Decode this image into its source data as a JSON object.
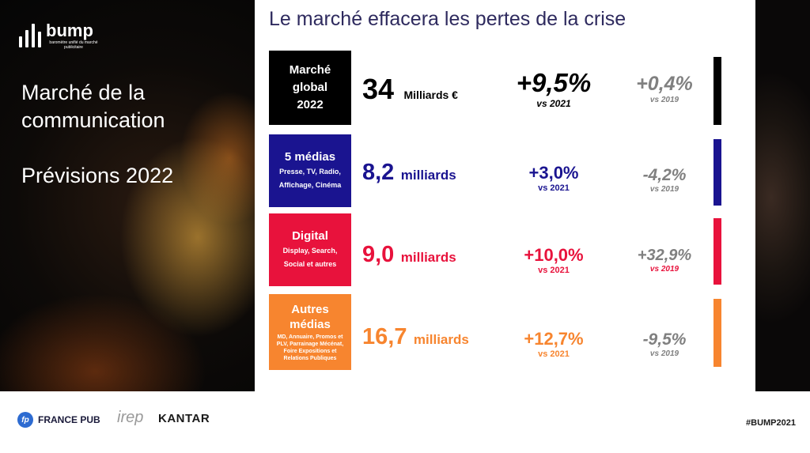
{
  "logo": {
    "name": "bump",
    "subtitle": "baromètre unifié du marché publicitaire"
  },
  "left": {
    "title": "Marché de la communication",
    "subtitle": "Prévisions 2022"
  },
  "main_title": "Le marché effacera les pertes de la crise",
  "rows": [
    {
      "category": "Marché global 2022",
      "detail": "",
      "amount": "34",
      "unit": "Milliards €",
      "pct_2021": "+9,5%",
      "vs_2021": "vs 2021",
      "pct_2019": "+0,4%",
      "vs_2019": "vs 2019",
      "color": "#000000"
    },
    {
      "category": "5 médias",
      "detail": "Presse, TV, Radio, Affichage, Cinéma",
      "amount": "8,2",
      "unit": "milliards",
      "pct_2021": "+3,0%",
      "vs_2021": "vs 2021",
      "pct_2019": "-4,2%",
      "vs_2019": "vs 2019",
      "color": "#1a1490"
    },
    {
      "category": "Digital",
      "detail": "Display, Search, Social et autres",
      "amount": "9,0",
      "unit": "milliards",
      "pct_2021": "+10,0%",
      "vs_2021": "vs 2021",
      "pct_2019": "+32,9%",
      "vs_2019": "vs 2019",
      "color": "#e8123c"
    },
    {
      "category": "Autres médias",
      "detail": "MD, Annuaire, Promos et PLV, Parrainage Mécénat, Foire Expositions et Relations Publiques",
      "amount": "16,7",
      "unit": "milliards",
      "pct_2021": "+12,7%",
      "vs_2021": "vs 2021",
      "pct_2019": "-9,5%",
      "vs_2019": "vs 2019",
      "color": "#f7852f"
    }
  ],
  "footer": {
    "francepub_icon": "fp",
    "francepub": "FRANCE PUB",
    "irep": "irep",
    "kantar": "KANTAR",
    "hashtag": "#BUMP2021"
  }
}
